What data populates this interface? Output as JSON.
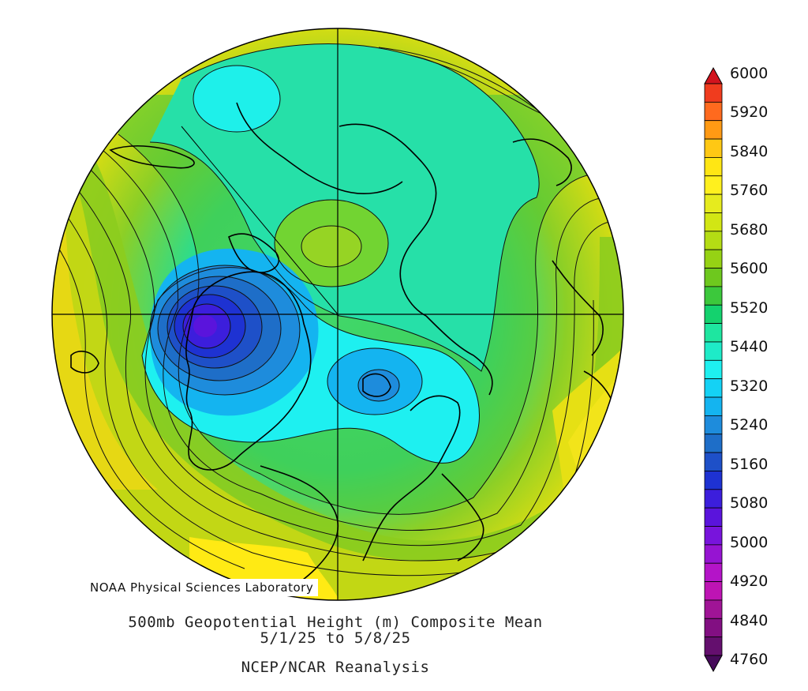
{
  "credit": "NOAA Physical Sciences Laboratory",
  "title": {
    "line1": "500mb Geopotential Height (m) Composite Mean",
    "line2": "5/1/25  to 5/8/25",
    "line3": "NCEP/NCAR Reanalysis"
  },
  "colorbar": {
    "labels": [
      "6000",
      "5920",
      "5840",
      "5760",
      "5680",
      "5600",
      "5520",
      "5440",
      "5320",
      "5240",
      "5160",
      "5080",
      "5000",
      "4920",
      "4840",
      "4760"
    ],
    "colors": [
      "#d2141e",
      "#f03c1e",
      "#ff6a1e",
      "#ff9a14",
      "#ffc814",
      "#ffe614",
      "#fff01e",
      "#e6eb1e",
      "#d2e614",
      "#b4dc14",
      "#96d214",
      "#6ec81e",
      "#3cc83c",
      "#14d26e",
      "#1ee6a0",
      "#1eebc8",
      "#1ef0f0",
      "#14d2f5",
      "#14b4f0",
      "#1e8cdc",
      "#1e6ec8",
      "#1e50c8",
      "#1e32d2",
      "#3c1edc",
      "#5a14dc",
      "#7814dc",
      "#9614d2",
      "#b414c8",
      "#be14b4",
      "#a01496",
      "#820f82",
      "#640f6e",
      "#460a5a"
    ]
  }
}
